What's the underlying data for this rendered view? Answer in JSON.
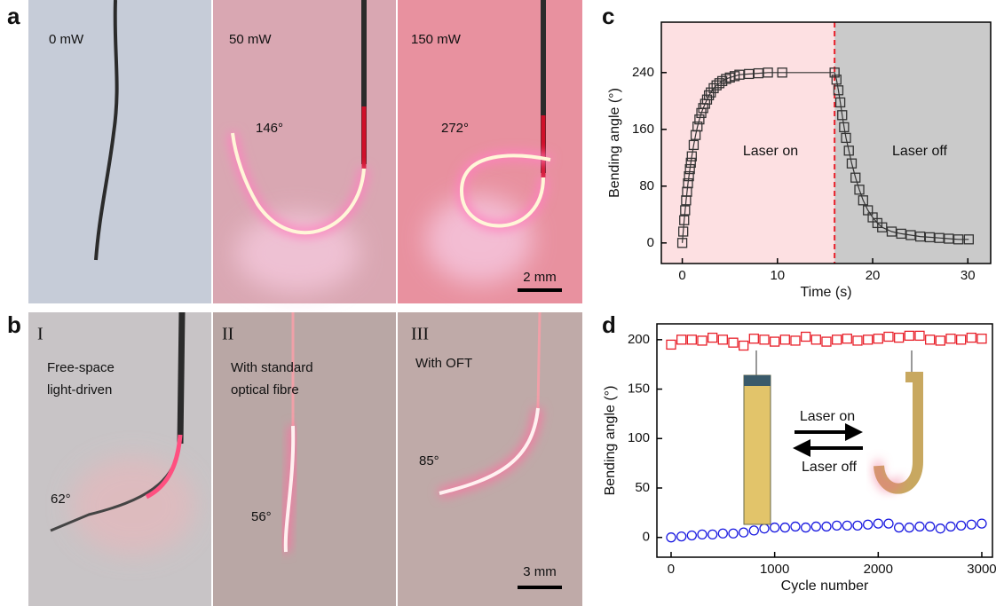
{
  "figure": {
    "panel_labels": [
      "a",
      "b",
      "c",
      "d"
    ],
    "a": {
      "powers": [
        "0 mW",
        "50 mW",
        "150 mW"
      ],
      "angles": [
        "146°",
        "272°"
      ],
      "scale_bar": "2 mm"
    },
    "b": {
      "numerals": [
        "I",
        "II",
        "III"
      ],
      "captions": [
        [
          "Free-space",
          "light-driven"
        ],
        [
          "With standard",
          "optical fibre"
        ],
        [
          "With OFT"
        ]
      ],
      "angles": [
        "62°",
        "56°",
        "85°"
      ],
      "scale_bar": "3 mm"
    }
  },
  "chart_data": [
    {
      "type": "line",
      "xlabel": "Time (s)",
      "ylabel": "Bending angle (°)",
      "x": [
        0,
        0.1,
        0.2,
        0.3,
        0.4,
        0.5,
        0.6,
        0.7,
        0.8,
        0.9,
        1.0,
        1.2,
        1.4,
        1.6,
        1.8,
        2.0,
        2.2,
        2.4,
        2.6,
        2.8,
        3.0,
        3.3,
        3.6,
        3.9,
        4.2,
        4.6,
        5.0,
        5.5,
        6.0,
        7.0,
        8.0,
        9.0,
        10.5,
        16.0,
        16.2,
        16.4,
        16.6,
        16.8,
        17.0,
        17.2,
        17.5,
        17.8,
        18.2,
        18.6,
        19.0,
        19.5,
        20.0,
        20.5,
        21.0,
        22.0,
        23.0,
        24.0,
        25.0,
        26.0,
        27.0,
        28.0,
        29.0,
        30.1
      ],
      "series": [
        {
          "color": "#333333",
          "marker": "square",
          "values": [
            0,
            16,
            32,
            46,
            60,
            72,
            84,
            94,
            104,
            113,
            122,
            138,
            152,
            164,
            174,
            183,
            190,
            196,
            202,
            208,
            212,
            218,
            222,
            225,
            228,
            231,
            233,
            235,
            237,
            238,
            239,
            240,
            240,
            240,
            230,
            215,
            198,
            180,
            163,
            148,
            130,
            112,
            92,
            75,
            60,
            46,
            36,
            28,
            22,
            16,
            13,
            11,
            9,
            8,
            7,
            6,
            5,
            5
          ]
        }
      ],
      "xlim": [
        -2.2,
        32.4
      ],
      "xticks": [
        0,
        10,
        20,
        30
      ],
      "ylim": [
        -29,
        311
      ],
      "yticks": [
        0,
        80,
        160,
        240
      ],
      "divider": 16,
      "regions": [
        {
          "label": "Laser on",
          "color": "#fde0e2",
          "label_color": "#e8202a"
        },
        {
          "label": "Laser off",
          "color": "#cacaca",
          "label_color": "#222222"
        }
      ]
    },
    {
      "type": "scatter",
      "xlabel": "Cycle number",
      "ylabel": "Bending angle (°)",
      "x": [
        0,
        100,
        200,
        300,
        400,
        500,
        600,
        700,
        800,
        900,
        1000,
        1100,
        1200,
        1300,
        1400,
        1500,
        1600,
        1700,
        1800,
        1900,
        2000,
        2100,
        2200,
        2300,
        2400,
        2500,
        2600,
        2700,
        2800,
        2900,
        3000
      ],
      "series": [
        {
          "color": "#e8202a",
          "marker": "square",
          "values": [
            195,
            200,
            200,
            199,
            202,
            200,
            197,
            194,
            201,
            200,
            198,
            200,
            199,
            203,
            200,
            198,
            200,
            201,
            199,
            200,
            201,
            203,
            202,
            204,
            204,
            200,
            199,
            201,
            200,
            202,
            201
          ]
        },
        {
          "color": "#1a1ae0",
          "marker": "circle",
          "values": [
            0,
            1,
            2,
            3,
            3,
            4,
            4,
            5,
            7,
            9,
            10,
            10,
            11,
            10,
            11,
            11,
            12,
            12,
            12,
            13,
            14,
            14,
            10,
            10,
            11,
            11,
            9,
            11,
            12,
            13,
            14
          ]
        }
      ],
      "xlim": [
        -137,
        3103
      ],
      "xticks": [
        0,
        1000,
        2000,
        3000
      ],
      "ylim": [
        -20,
        216
      ],
      "yticks": [
        0,
        50,
        100,
        150,
        200
      ],
      "annotations": [
        {
          "text": "Laser on",
          "color": "#e8202a"
        },
        {
          "text": "Laser off",
          "color": "#1a1ae0"
        }
      ]
    }
  ]
}
